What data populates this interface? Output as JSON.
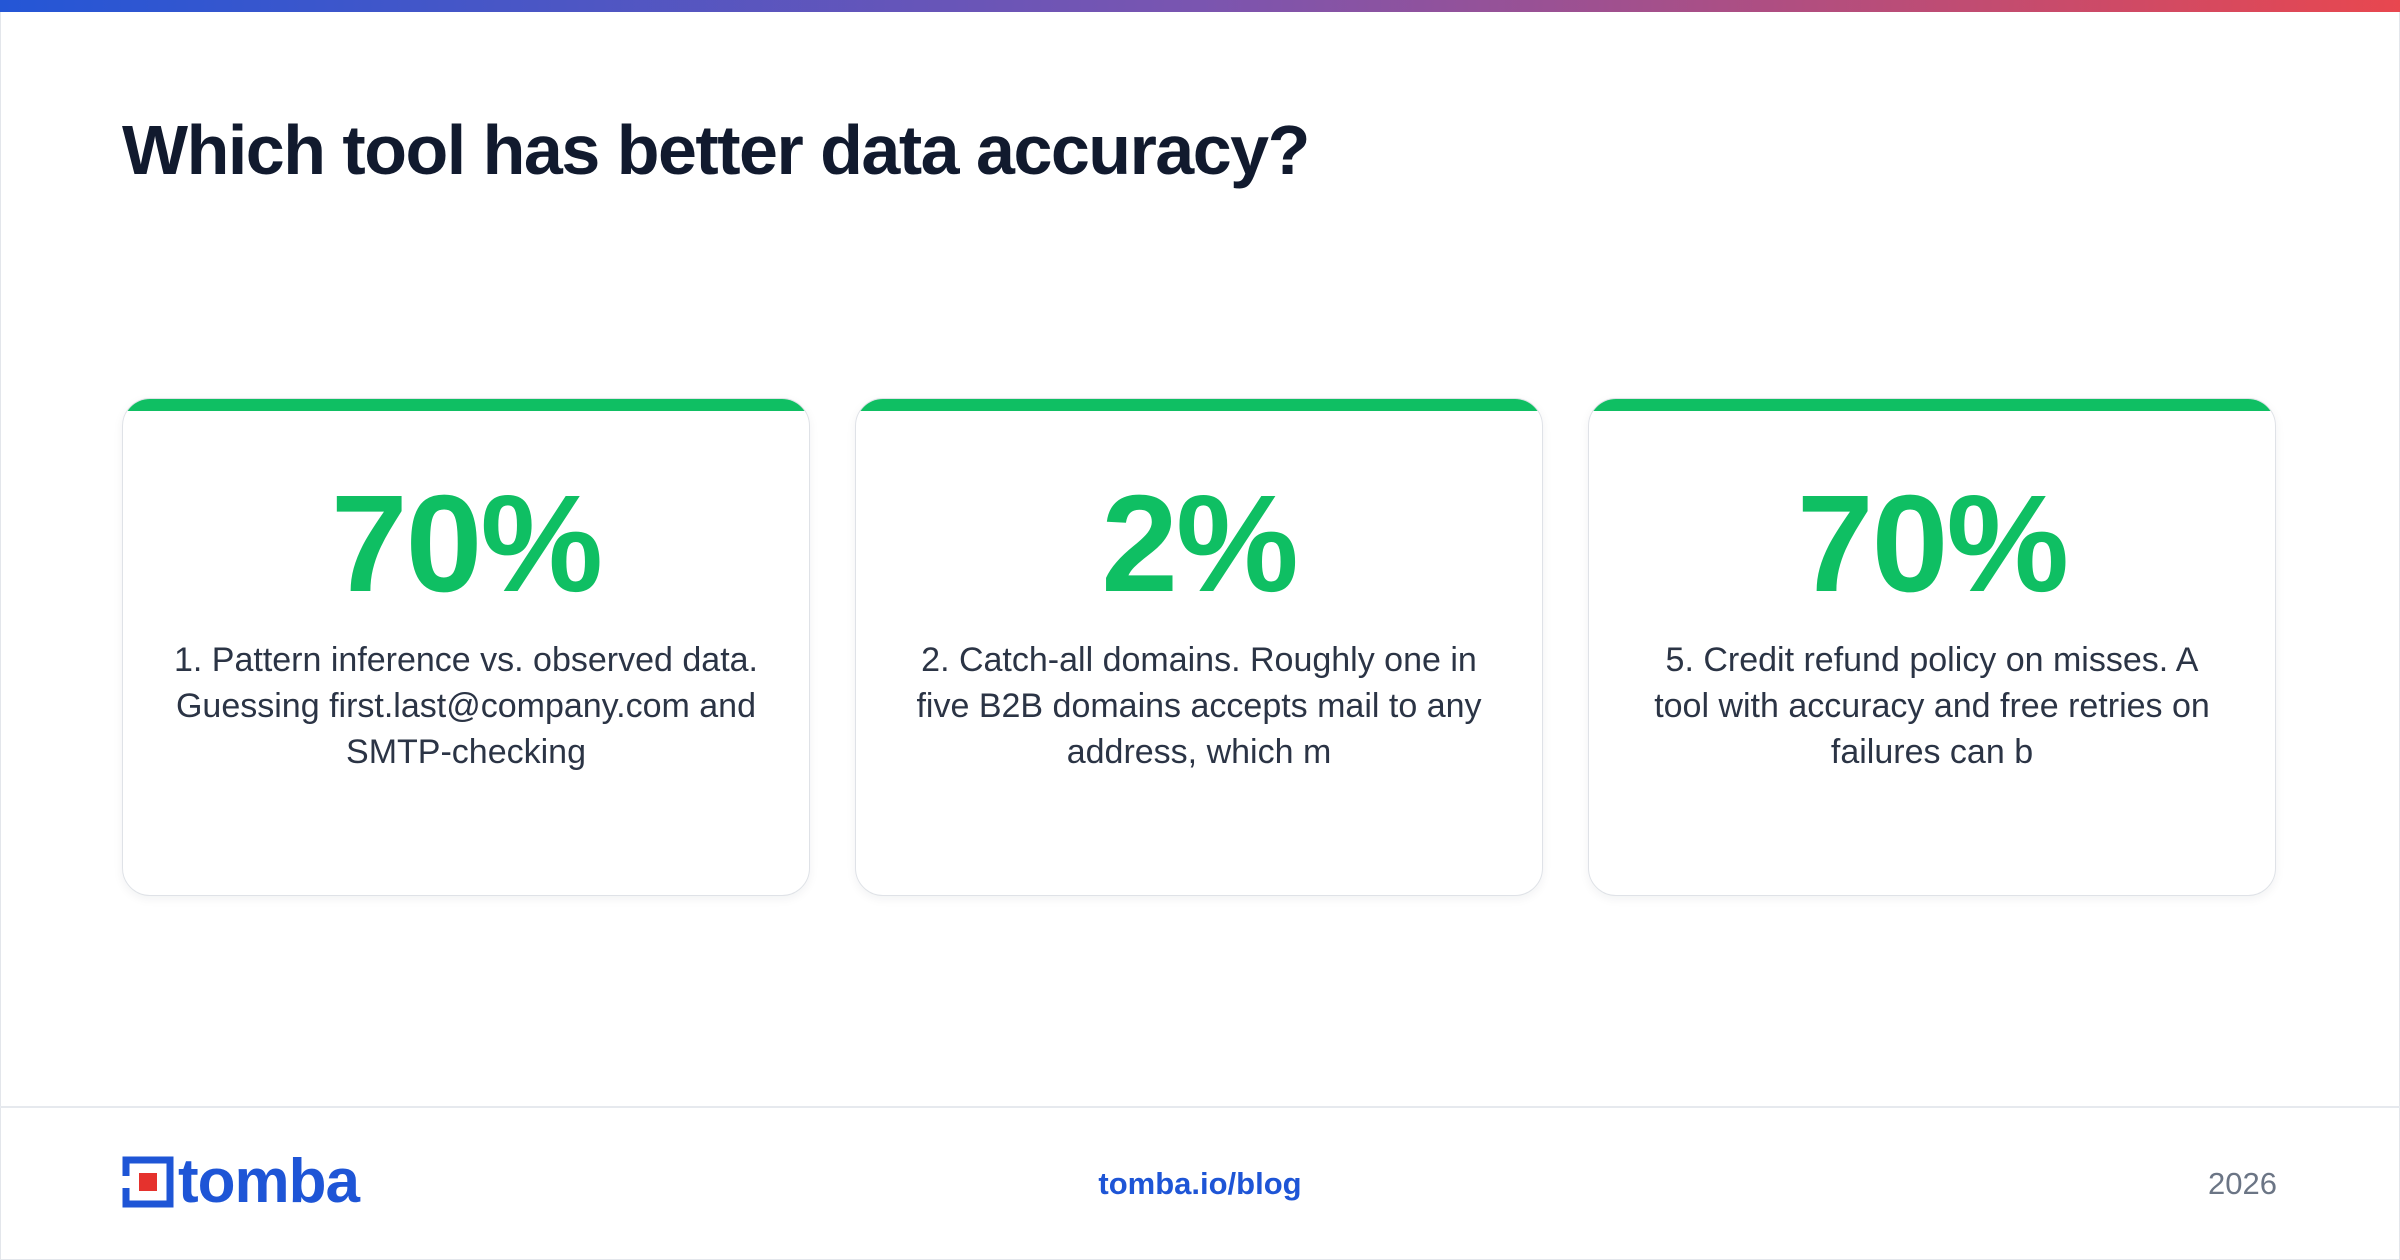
{
  "headline": "Which tool has better data accuracy?",
  "cards": [
    {
      "stat": "70%",
      "text": "1. Pattern inference vs. observed data. Guessing first.last@company.com and SMTP-checking"
    },
    {
      "stat": "2%",
      "text": "2. Catch-all domains. Roughly one in five B2B domains accepts mail to any address, which m"
    },
    {
      "stat": "70%",
      "text": "5. Credit refund policy on misses. A tool with accuracy and free retries on failures can b"
    }
  ],
  "footer": {
    "logo_text": "tomba",
    "link": "tomba.io/blog",
    "year": "2026"
  },
  "colors": {
    "accent_green": "#0fbf63",
    "brand_blue": "#1e55d6",
    "logo_red": "#e5322d",
    "headline": "#111a2e",
    "body_text": "#2b3445",
    "gradient_start": "#2456d6",
    "gradient_end": "#e8474f"
  },
  "icons": {
    "logo": "tomba-logo-icon"
  }
}
